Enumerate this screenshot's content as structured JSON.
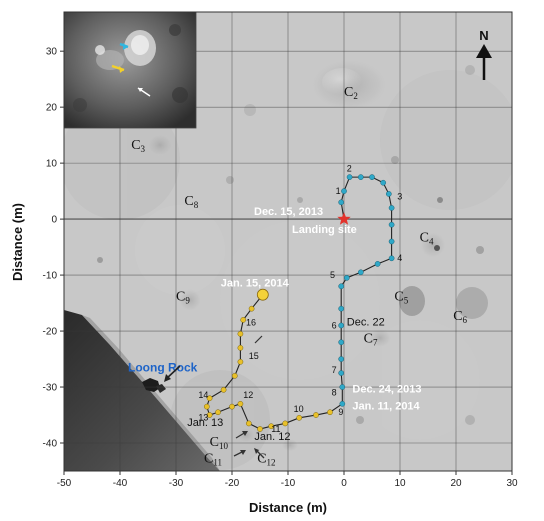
{
  "map": {
    "x_axis": {
      "label": "Distance (m)",
      "range": [
        -50,
        30
      ],
      "ticks": [
        -50,
        -40,
        -30,
        -20,
        -10,
        0,
        10,
        20,
        30
      ]
    },
    "y_axis": {
      "label": "Distance (m)",
      "range": [
        -45,
        37
      ],
      "ticks": [
        30,
        20,
        10,
        0,
        -10,
        -20,
        -30,
        -40
      ]
    },
    "north": "N",
    "landing_site": {
      "x": 0,
      "y": 0,
      "label": "Landing site",
      "date": "Dec. 15, 2013"
    },
    "date_labels": [
      {
        "text": "Jan. 15, 2014",
        "x": -22,
        "y": -12,
        "style": "white"
      },
      {
        "text": "Dec. 22",
        "x": 0.5,
        "y": -19,
        "style": "dark"
      },
      {
        "text": "Dec. 24, 2013",
        "x": 1.5,
        "y": -31,
        "style": "white"
      },
      {
        "text": "Jan. 11, 2014",
        "x": 1.5,
        "y": -34,
        "style": "white"
      },
      {
        "text": "Jan. 13",
        "x": -28,
        "y": -37,
        "style": "dark"
      },
      {
        "text": "Jan. 12",
        "x": -16,
        "y": -39.5,
        "style": "dark"
      }
    ],
    "rock": {
      "label": "Loong Rock",
      "x": -35,
      "y": -29
    },
    "craters": [
      {
        "name": "C",
        "sub": "2",
        "x": 0,
        "y": 22
      },
      {
        "name": "C",
        "sub": "3",
        "x": -38,
        "y": 12.5
      },
      {
        "name": "C",
        "sub": "8",
        "x": -28.5,
        "y": 2.5
      },
      {
        "name": "C",
        "sub": "4",
        "x": 13.5,
        "y": -4
      },
      {
        "name": "C",
        "sub": "5",
        "x": 9,
        "y": -14.5
      },
      {
        "name": "C",
        "sub": "6",
        "x": 19.5,
        "y": -18
      },
      {
        "name": "C",
        "sub": "7",
        "x": 3.5,
        "y": -22
      },
      {
        "name": "C",
        "sub": "9",
        "x": -30,
        "y": -14.5
      },
      {
        "name": "C",
        "sub": "10",
        "x": -24,
        "y": -40.5
      },
      {
        "name": "C",
        "sub": "11",
        "x": -25,
        "y": -43.5
      },
      {
        "name": "C",
        "sub": "12",
        "x": -15.5,
        "y": -43.5
      }
    ],
    "rover_path": {
      "segment_1": [
        {
          "x": 0,
          "y": 0
        },
        {
          "x": -0.5,
          "y": 3
        },
        {
          "x": 0,
          "y": 5
        },
        {
          "x": 1,
          "y": 7.5
        },
        {
          "x": 3,
          "y": 7.5
        },
        {
          "x": 5,
          "y": 7.5
        },
        {
          "x": 7,
          "y": 6.5
        },
        {
          "x": 8,
          "y": 4.5
        },
        {
          "x": 8.5,
          "y": 2
        },
        {
          "x": 8.5,
          "y": -1
        },
        {
          "x": 8.5,
          "y": -4
        },
        {
          "x": 8.5,
          "y": -7
        },
        {
          "x": 6,
          "y": -8
        },
        {
          "x": 3,
          "y": -9.5
        },
        {
          "x": 0.5,
          "y": -10.5
        },
        {
          "x": -0.5,
          "y": -12
        },
        {
          "x": -0.5,
          "y": -16
        },
        {
          "x": -0.5,
          "y": -19
        },
        {
          "x": -0.5,
          "y": -22
        },
        {
          "x": -0.5,
          "y": -25
        },
        {
          "x": -0.5,
          "y": -27.5
        },
        {
          "x": -0.3,
          "y": -30
        },
        {
          "x": -0.3,
          "y": -33
        }
      ],
      "segment_2": [
        {
          "x": -0.3,
          "y": -33
        },
        {
          "x": -2.5,
          "y": -34.5
        },
        {
          "x": -5,
          "y": -35
        },
        {
          "x": -8,
          "y": -35.5
        },
        {
          "x": -10.5,
          "y": -36.5
        },
        {
          "x": -13,
          "y": -37
        },
        {
          "x": -15,
          "y": -37.5
        },
        {
          "x": -17,
          "y": -36.5
        },
        {
          "x": -18.5,
          "y": -33
        },
        {
          "x": -20,
          "y": -33.5
        },
        {
          "x": -22.5,
          "y": -34.5
        },
        {
          "x": -24,
          "y": -35
        },
        {
          "x": -24.5,
          "y": -33.5
        },
        {
          "x": -24,
          "y": -32
        },
        {
          "x": -21.5,
          "y": -30.5
        },
        {
          "x": -19.5,
          "y": -28
        },
        {
          "x": -18.5,
          "y": -25.5
        },
        {
          "x": -18.5,
          "y": -23
        },
        {
          "x": -18.5,
          "y": -20.5
        },
        {
          "x": -18,
          "y": -18
        },
        {
          "x": -16.5,
          "y": -16
        },
        {
          "x": -14.5,
          "y": -13.5
        }
      ],
      "end": {
        "x": -14.5,
        "y": -13.5
      },
      "waypoint_labels": [
        {
          "text": "1",
          "x": -1.5,
          "y": 4.5
        },
        {
          "text": "2",
          "x": 0.5,
          "y": 8.5
        },
        {
          "text": "3",
          "x": 9.5,
          "y": 3.5
        },
        {
          "text": "4",
          "x": 9.5,
          "y": -7.5
        },
        {
          "text": "5",
          "x": -2.5,
          "y": -10.5
        },
        {
          "text": "6",
          "x": -2.2,
          "y": -19.5
        },
        {
          "text": "7",
          "x": -2.2,
          "y": -27.5
        },
        {
          "text": "8",
          "x": -2.2,
          "y": -31.5
        },
        {
          "text": "9",
          "x": -1,
          "y": -35
        },
        {
          "text": "10",
          "x": -9,
          "y": -34.5
        },
        {
          "text": "11",
          "x": -13,
          "y": -38
        },
        {
          "text": "12",
          "x": -18,
          "y": -32
        },
        {
          "text": "13",
          "x": -26,
          "y": -36
        },
        {
          "text": "14",
          "x": -26,
          "y": -32
        },
        {
          "text": "15",
          "x": -17,
          "y": -25
        },
        {
          "text": "16",
          "x": -17.5,
          "y": -19
        }
      ]
    },
    "colors": {
      "path_segment_1": "#2fa8c8",
      "path_segment_2": "#e8c02a",
      "landing_star": "#e3332c",
      "end_point": "#f4d23a",
      "rock_label": "#1e64c8"
    }
  }
}
